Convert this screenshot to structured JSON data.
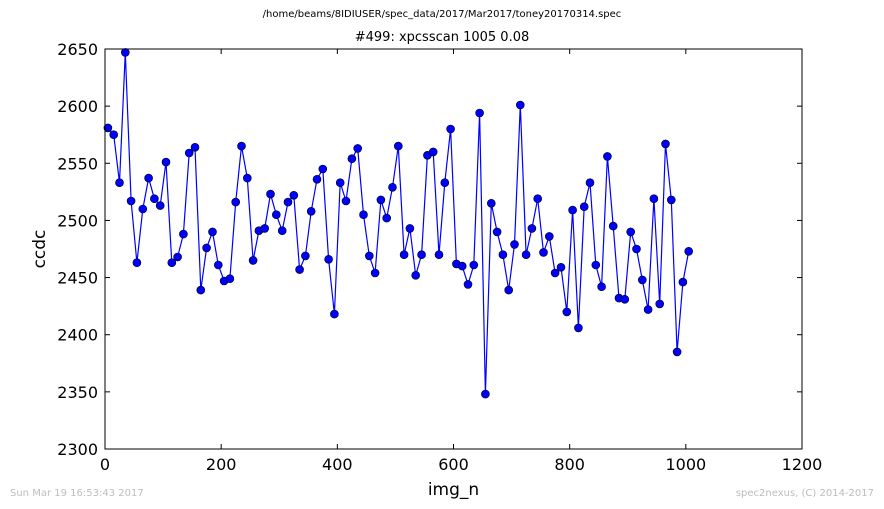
{
  "header": {
    "file_path": "/home/beams/8IDIUSER/spec_data/2017/Mar2017/toney20170314.spec",
    "scan_title": "#499: xpcsscan 1005 0.08"
  },
  "footer": {
    "timestamp": "Sun Mar 19 16:53:43 2017",
    "credit": "spec2nexus, (C) 2014-2017"
  },
  "colors": {
    "series": "#0000ff",
    "marker_fill": "#0000ff",
    "axes": "#000000"
  },
  "chart_data": {
    "type": "line",
    "xlabel": "img_n",
    "ylabel": "ccdc",
    "xlim": [
      0,
      1200
    ],
    "ylim": [
      2300,
      2650
    ],
    "xticks": [
      0,
      200,
      400,
      600,
      800,
      1000,
      1200
    ],
    "yticks": [
      2300,
      2350,
      2400,
      2450,
      2500,
      2550,
      2600,
      2650
    ],
    "grid": false,
    "markers": "circle",
    "x": [
      5,
      15,
      25,
      35,
      45,
      55,
      65,
      75,
      85,
      95,
      105,
      115,
      125,
      135,
      145,
      155,
      165,
      175,
      185,
      195,
      205,
      215,
      225,
      235,
      245,
      255,
      265,
      275,
      285,
      295,
      305,
      315,
      325,
      335,
      345,
      355,
      365,
      375,
      385,
      395,
      405,
      415,
      425,
      435,
      445,
      455,
      465,
      475,
      485,
      495,
      505,
      515,
      525,
      535,
      545,
      555,
      565,
      575,
      585,
      595,
      605,
      615,
      625,
      635,
      645,
      655,
      665,
      675,
      685,
      695,
      705,
      715,
      725,
      735,
      745,
      755,
      765,
      775,
      785,
      795,
      805,
      815,
      825,
      835,
      845,
      855,
      865,
      875,
      885,
      895,
      905,
      915,
      925,
      935,
      945,
      955,
      965,
      975,
      985,
      995,
      1005
    ],
    "y": [
      2581,
      2575,
      2533,
      2647,
      2517,
      2463,
      2510,
      2537,
      2519,
      2513,
      2551,
      2463,
      2468,
      2488,
      2559,
      2564,
      2439,
      2476,
      2490,
      2461,
      2447,
      2449,
      2516,
      2565,
      2537,
      2465,
      2491,
      2493,
      2523,
      2505,
      2491,
      2516,
      2522,
      2457,
      2469,
      2508,
      2536,
      2545,
      2466,
      2418,
      2533,
      2517,
      2554,
      2563,
      2505,
      2469,
      2454,
      2518,
      2502,
      2529,
      2565,
      2470,
      2493,
      2452,
      2470,
      2557,
      2560,
      2470,
      2533,
      2580,
      2462,
      2460,
      2444,
      2461,
      2594,
      2348,
      2515,
      2490,
      2470,
      2439,
      2479,
      2601,
      2470,
      2493,
      2519,
      2472,
      2486,
      2454,
      2459,
      2420,
      2509,
      2406,
      2512,
      2533,
      2461,
      2442,
      2556,
      2495,
      2432,
      2431,
      2490,
      2475,
      2448,
      2422,
      2519,
      2427,
      2567,
      2518,
      2385,
      2446,
      2473
    ]
  }
}
